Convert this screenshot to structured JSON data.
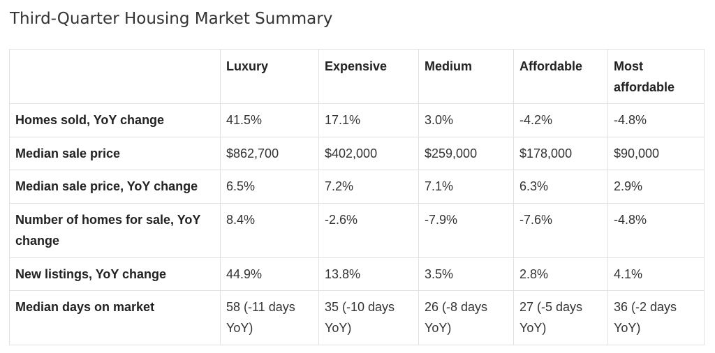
{
  "title": "Third-Quarter Housing Market Summary",
  "table": {
    "columns": [
      "",
      "Luxury",
      "Expensive",
      "Medium",
      "Affordable",
      "Most affordable"
    ],
    "rows": [
      {
        "label": "Homes sold, YoY change",
        "values": [
          "41.5%",
          "17.1%",
          "3.0%",
          "-4.2%",
          "-4.8%"
        ]
      },
      {
        "label": "Median sale price",
        "values": [
          "$862,700",
          "$402,000",
          "$259,000",
          "$178,000",
          "$90,000"
        ]
      },
      {
        "label": "Median sale price, YoY change",
        "values": [
          "6.5%",
          "7.2%",
          "7.1%",
          "6.3%",
          "2.9%"
        ]
      },
      {
        "label": "Number of homes for sale, YoY change",
        "values": [
          "8.4%",
          "-2.6%",
          "-7.9%",
          "-7.6%",
          "-4.8%"
        ]
      },
      {
        "label": "New listings, YoY change",
        "values": [
          "44.9%",
          "13.8%",
          "3.5%",
          "2.8%",
          "4.1%"
        ]
      },
      {
        "label": "Median days on market",
        "values": [
          "58 (-11 days YoY)",
          "35 (-10 days YoY)",
          "26 (-8 days YoY)",
          "27 (-5 days YoY)",
          "36 (-2 days YoY)"
        ]
      }
    ]
  }
}
